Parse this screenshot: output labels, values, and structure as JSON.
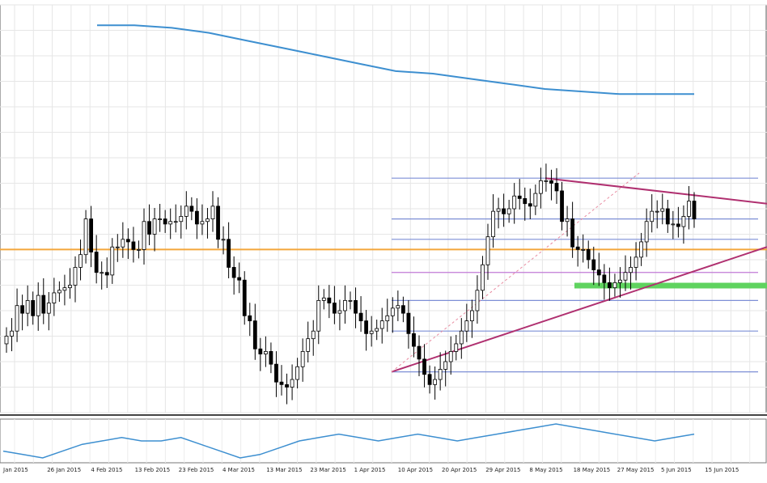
{
  "chart_data": {
    "type": "candlestick",
    "x_axis_dates": [
      "Jan 2015",
      "26 Jan 2015",
      "4 Feb 2015",
      "13 Feb 2015",
      "23 Feb 2015",
      "4 Mar 2015",
      "13 Mar 2015",
      "23 Mar 2015",
      "1 Apr 2015",
      "10 Apr 2015",
      "20 Apr 2015",
      "29 Apr 2015",
      "8 May 2015",
      "18 May 2015",
      "27 May 2015",
      "5 Jun 2015",
      "15 Jun 2015"
    ],
    "closes": [
      1.0,
      1.2,
      2.2,
      1.9,
      2.4,
      1.8,
      2.6,
      1.9,
      2.3,
      2.7,
      2.8,
      2.9,
      3.0,
      3.7,
      4.2,
      5.6,
      4.3,
      3.5,
      3.5,
      3.4,
      4.5,
      4.5,
      4.8,
      4.7,
      4.4,
      4.4,
      5.5,
      5.0,
      5.6,
      5.6,
      5.4,
      5.5,
      5.5,
      5.7,
      6.1,
      5.9,
      5.4,
      5.5,
      5.6,
      6.1,
      4.8,
      4.8,
      3.7,
      3.3,
      3.2,
      1.8,
      1.6,
      0.5,
      0.3,
      0.4,
      -0.1,
      -0.8,
      -0.9,
      -1.0,
      -0.7,
      -0.2,
      0.4,
      0.9,
      1.2,
      2.4,
      2.5,
      2.3,
      1.9,
      2.0,
      2.4,
      2.4,
      1.9,
      1.6,
      1.1,
      1.2,
      1.3,
      1.6,
      1.8,
      2.1,
      2.2,
      1.9,
      1.1,
      0.6,
      0.1,
      -0.5,
      -0.9,
      -0.7,
      -0.3,
      0.0,
      0.4,
      0.7,
      1.2,
      1.6,
      2.0,
      2.8,
      3.8,
      4.9,
      5.9,
      6.0,
      5.8,
      6.0,
      6.5,
      6.4,
      6.2,
      6.1,
      6.6,
      7.1,
      7.1,
      7.0,
      6.7,
      5.5,
      5.6,
      4.5,
      4.4,
      4.4,
      4.0,
      3.6,
      3.4,
      3.1,
      2.9,
      3.1,
      3.2,
      3.5,
      3.7,
      4.1,
      4.7,
      5.5,
      5.9,
      5.9,
      6.0,
      5.4,
      5.4,
      5.3,
      5.7,
      6.3,
      5.6
    ],
    "series": [
      {
        "values": [
          1.0,
          1.2,
          2.2,
          1.9,
          2.4,
          1.8,
          2.6,
          1.9,
          2.3,
          2.7,
          2.8,
          2.9,
          3.0,
          3.7,
          4.2,
          5.6,
          4.3,
          3.5,
          3.5,
          3.4,
          4.5,
          4.5,
          4.8,
          4.7,
          4.4,
          4.4,
          5.5,
          5.0,
          5.6,
          5.6,
          5.4,
          5.5,
          5.5,
          5.7,
          6.1,
          5.9,
          5.4,
          5.5,
          5.6,
          6.1,
          4.8,
          4.8,
          3.7,
          3.3,
          3.2,
          1.8,
          1.6,
          0.5,
          0.3,
          0.4,
          -0.1,
          -0.8,
          -0.9,
          -1.0,
          -0.7,
          -0.2,
          0.4,
          0.9,
          1.2,
          2.4,
          2.5,
          2.3,
          1.9,
          2.0,
          2.4,
          2.4,
          1.9,
          1.6,
          1.1,
          1.2,
          1.3,
          1.6,
          1.8,
          2.1,
          2.2,
          1.9,
          1.1,
          0.6,
          0.1,
          -0.5,
          -0.9,
          -0.7,
          -0.3,
          0.0,
          0.4,
          0.7,
          1.2,
          1.6,
          2.0,
          2.8,
          3.8,
          4.9,
          5.9,
          6.0,
          5.8,
          6.0,
          6.5,
          6.4,
          6.2,
          6.1,
          6.6,
          7.1,
          7.1,
          7.0,
          6.7,
          5.5,
          5.6,
          4.5,
          4.4,
          4.4,
          4.0,
          3.6,
          3.4,
          3.1,
          2.9,
          3.1,
          3.2,
          3.5,
          3.7,
          4.1,
          4.7,
          5.5,
          5.9,
          5.9,
          6.0,
          5.4,
          5.4,
          5.3,
          5.7,
          6.3,
          5.6
        ]
      },
      {
        "values": [
          7.2,
          7.2,
          7.1,
          6.9,
          6.6,
          6.3,
          6.0,
          5.7,
          5.4,
          5.3,
          5.1,
          4.9,
          4.7,
          4.6,
          4.5,
          4.5,
          4.5
        ]
      }
    ],
    "moving_average_color": "#3d8fd0",
    "candle_up_color": "#ffffff",
    "candle_down_color": "#000000",
    "indicator": {
      "values": [
        0.2,
        0.1,
        0.0,
        0.2,
        0.4,
        0.5,
        0.6,
        0.5,
        0.5,
        0.6,
        0.4,
        0.2,
        0.0,
        0.1,
        0.3,
        0.5,
        0.6,
        0.7,
        0.6,
        0.5,
        0.6,
        0.7,
        0.6,
        0.5,
        0.6,
        0.7,
        0.8,
        0.9,
        1.0,
        0.9,
        0.8,
        0.7,
        0.6,
        0.5,
        0.6,
        0.7
      ],
      "color": "#3d8fd0"
    },
    "grid": true
  }
}
